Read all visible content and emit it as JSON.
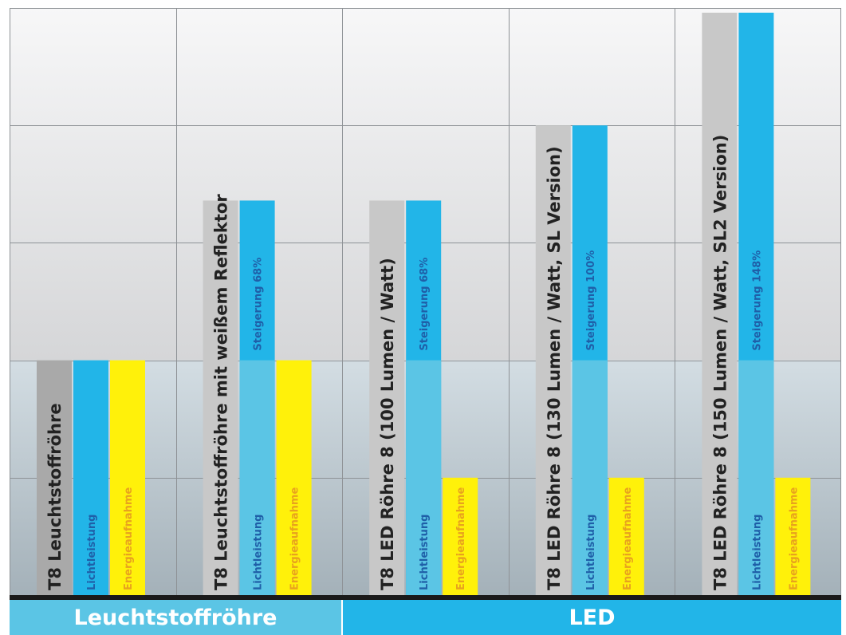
{
  "chart_data": {
    "type": "bar",
    "categories": [
      "T8 Leuchtstoffröhre",
      "T8 Leuchtstoffröhre mit weißem Reflektor",
      "T8 LED Röhre 8 (100 Lumen / Watt)",
      "T8 LED Röhre 8 (130 Lumen / Watt, SL Version)",
      "T8 LED Röhre 8 (150 Lumen / Watt, SL2 Version)"
    ],
    "series": [
      {
        "name": "Lichtleistung",
        "values": [
          100,
          168,
          168,
          200,
          248
        ],
        "color": "#22b5e8"
      },
      {
        "name": "Energieaufnahme",
        "values": [
          100,
          100,
          50,
          50,
          50
        ],
        "color": "#fff10a"
      }
    ],
    "increase_labels": [
      "",
      "Steigerung 68%",
      "Steigerung 68%",
      "Steigerung 100%",
      "Steigerung 148%"
    ],
    "ylim": [
      0,
      250
    ],
    "grid": true,
    "groups": [
      {
        "label": "Leuchtstoffröhre",
        "color": "#5bc5e5"
      },
      {
        "label": "LED",
        "color": "#22b5e8"
      }
    ],
    "colors": {
      "label_bar": "#c8c8c8",
      "label_bar_first": "#a9a9a9",
      "light": "#22b5e8",
      "light_lower": "#5bc5e5",
      "energy": "#fff10a",
      "light_text": "#1f5fa8",
      "energy_text": "#e8a21e"
    }
  }
}
